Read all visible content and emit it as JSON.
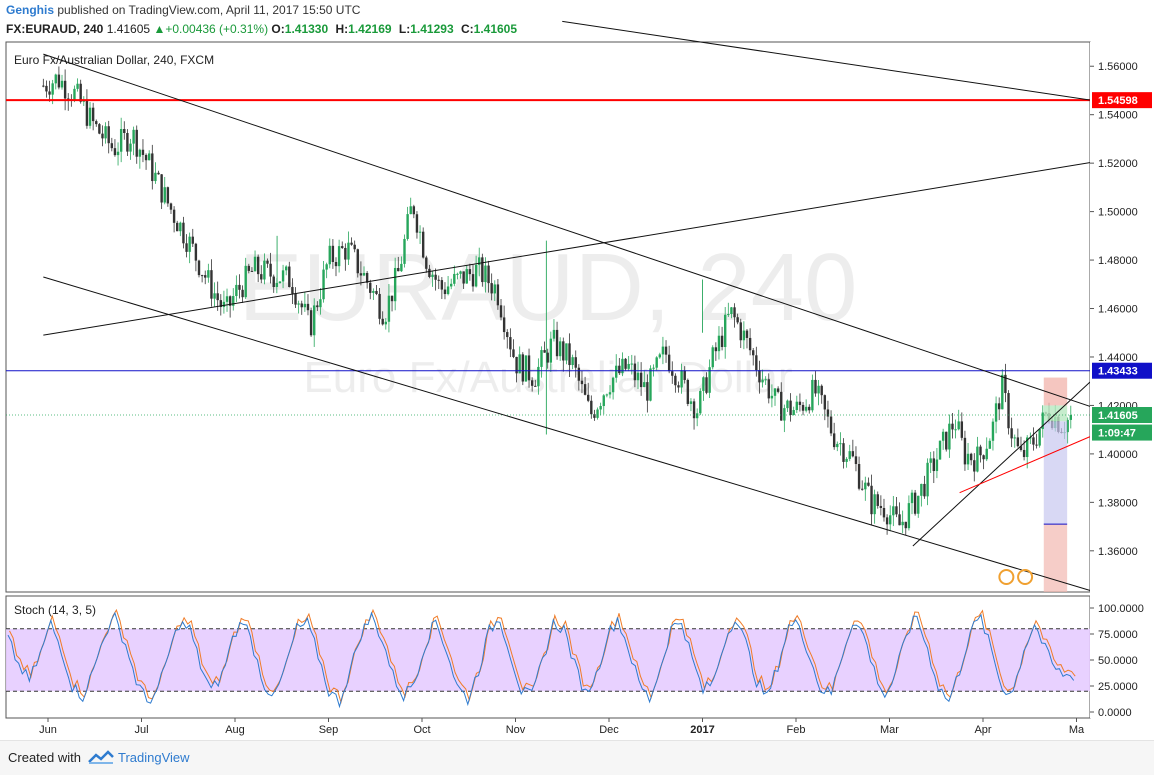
{
  "header": {
    "author": "Genghis",
    "published": "published on TradingView.com, April 11, 2017 15:50 UTC",
    "symbol": "FX:EURAUD, 240",
    "last": "1.41605",
    "change": "+0.00436 (+0.31%)",
    "o_label": "O:",
    "o_value": "1.41330",
    "h_label": "H:",
    "h_value": "1.42169",
    "l_label": "L:",
    "l_value": "1.41293",
    "c_label": "C:",
    "c_value": "1.41605"
  },
  "footer": {
    "created_with": "Created with",
    "brand": "TradingView"
  },
  "colors": {
    "up": "#26a65b",
    "down": "#333333",
    "red_line": "#ff0000",
    "blue_line": "#1010c8",
    "stoch_bg": "#e6ccff",
    "k_line": "#2e7bcf",
    "d_line": "#f07c28"
  },
  "chart_data": [
    {
      "type": "candlestick",
      "title": "Euro Fx/Australian Dollar, 240, FXCM",
      "watermark_symbol": "EURAUD, 240",
      "watermark_name": "Euro Fx/Australian Dollar",
      "x_ticks": [
        "Jun",
        "Jul",
        "Aug",
        "Sep",
        "Oct",
        "Nov",
        "Dec",
        "2017",
        "Feb",
        "Mar",
        "Apr",
        "Ma"
      ],
      "y_ticks": [
        "1.36000",
        "1.38000",
        "1.40000",
        "1.42000",
        "1.44000",
        "1.46000",
        "1.48000",
        "1.50000",
        "1.52000",
        "1.54000",
        "1.56000"
      ],
      "ylim": [
        1.343,
        1.57
      ],
      "xlim_months": [
        0,
        11.5
      ],
      "price_tags": [
        {
          "label": "1.54598",
          "value": 1.546,
          "color": "#ff0000"
        },
        {
          "label": "1.43433",
          "value": 1.43433,
          "color": "#1010c8"
        },
        {
          "label": "1.41605",
          "value": 1.41605,
          "color": "#26a65b"
        },
        {
          "label": "1:09:47",
          "value": 1.4088,
          "color": "#26a65b"
        }
      ],
      "series": [
        {
          "name": "",
          "points": [
            [
              -0.05,
              1.552
            ],
            [
              0.1,
              1.555
            ],
            [
              0.3,
              1.548
            ],
            [
              0.5,
              1.535
            ],
            [
              0.7,
              1.526
            ],
            [
              0.9,
              1.532
            ],
            [
              1.1,
              1.518
            ],
            [
              1.3,
              1.502
            ],
            [
              1.5,
              1.488
            ],
            [
              1.7,
              1.472
            ],
            [
              1.9,
              1.458
            ],
            [
              2.0,
              1.466
            ],
            [
              2.2,
              1.476
            ],
            [
              2.4,
              1.474
            ],
            [
              2.6,
              1.472
            ],
            [
              2.8,
              1.452
            ],
            [
              3.0,
              1.48
            ],
            [
              3.2,
              1.485
            ],
            [
              3.4,
              1.472
            ],
            [
              3.6,
              1.458
            ],
            [
              3.75,
              1.475
            ],
            [
              3.9,
              1.504
            ],
            [
              4.05,
              1.48
            ],
            [
              4.2,
              1.468
            ],
            [
              4.4,
              1.472
            ],
            [
              4.6,
              1.476
            ],
            [
              4.8,
              1.468
            ],
            [
              5.0,
              1.438
            ],
            [
              5.2,
              1.432
            ],
            [
              5.4,
              1.446
            ],
            [
              5.6,
              1.438
            ],
            [
              5.8,
              1.416
            ],
            [
              6.0,
              1.43
            ],
            [
              6.2,
              1.436
            ],
            [
              6.4,
              1.426
            ],
            [
              6.6,
              1.442
            ],
            [
              6.8,
              1.428
            ],
            [
              6.95,
              1.418
            ],
            [
              7.1,
              1.438
            ],
            [
              7.3,
              1.458
            ],
            [
              7.4,
              1.452
            ],
            [
              7.6,
              1.435
            ],
            [
              7.8,
              1.42
            ],
            [
              8.0,
              1.418
            ],
            [
              8.2,
              1.426
            ],
            [
              8.4,
              1.408
            ],
            [
              8.6,
              1.398
            ],
            [
              8.8,
              1.38
            ],
            [
              8.95,
              1.378
            ],
            [
              9.1,
              1.37
            ],
            [
              9.3,
              1.382
            ],
            [
              9.5,
              1.398
            ],
            [
              9.7,
              1.414
            ],
            [
              9.8,
              1.4
            ],
            [
              9.95,
              1.398
            ],
            [
              10.1,
              1.41
            ],
            [
              10.2,
              1.428
            ],
            [
              10.3,
              1.41
            ],
            [
              10.4,
              1.398
            ],
            [
              10.55,
              1.406
            ],
            [
              10.7,
              1.418
            ],
            [
              10.85,
              1.412
            ],
            [
              10.97,
              1.416
            ]
          ]
        }
      ],
      "spikes": [
        {
          "month": 5.33,
          "high": 1.488,
          "low": 1.408
        },
        {
          "month": 7.0,
          "high": 1.472,
          "low": 1.45
        },
        {
          "month": 2.45,
          "high": 1.49,
          "low": 1.47
        }
      ],
      "trendlines": [
        {
          "x1": -0.05,
          "y1": 1.565,
          "x2": 11.5,
          "y2": 1.415
        },
        {
          "x1": -0.05,
          "y1": 1.473,
          "x2": 11.2,
          "y2": 1.343
        },
        {
          "x1": -0.05,
          "y1": 1.449,
          "x2": 11.5,
          "y2": 1.5225
        },
        {
          "x1": 5.5,
          "y1": 1.5785,
          "x2": 11.5,
          "y2": 1.544
        },
        {
          "x1": 9.25,
          "y1": 1.362,
          "x2": 11.35,
          "y2": 1.437
        },
        {
          "x1": 9.75,
          "y1": 1.384,
          "x2": 11.5,
          "y2": 1.413
        }
      ],
      "position_tool": {
        "x_start": 10.65,
        "x_end": 10.9,
        "entry": 1.4135,
        "target": 1.42,
        "stop": 1.371,
        "bottom": 1.343,
        "top": 1.4315
      }
    },
    {
      "type": "line",
      "title": "Stoch (14, 3, 5)",
      "y_ticks": [
        "0.0000",
        "25.0000",
        "50.0000",
        "75.0000",
        "100.0000"
      ],
      "ylim": [
        0,
        100
      ],
      "bands": [
        20,
        80
      ],
      "series": [
        {
          "name": "",
          "values": [
            70,
            45,
            30,
            55,
            85,
            60,
            25,
            15,
            40,
            75,
            90,
            65,
            30,
            10,
            20,
            55,
            85,
            80,
            45,
            20,
            35,
            70,
            90,
            60,
            25,
            15,
            45,
            80,
            85,
            55,
            20,
            10,
            40,
            75,
            92,
            70,
            35,
            15,
            30,
            65,
            88,
            60,
            25,
            12,
            40,
            78,
            90,
            55,
            20,
            15,
            50,
            85,
            80,
            45,
            18,
            35,
            72,
            90,
            62,
            28,
            12,
            42,
            80,
            88,
            50,
            20,
            30,
            68,
            92,
            66,
            30,
            14,
            45,
            82,
            85,
            52,
            22,
            18,
            55,
            88,
            75,
            40,
            15,
            35,
            75,
            92,
            60,
            25,
            10,
            40,
            78,
            90,
            58,
            22,
            20,
            60,
            85,
            60,
            40,
            35
          ]
        }
      ]
    }
  ]
}
